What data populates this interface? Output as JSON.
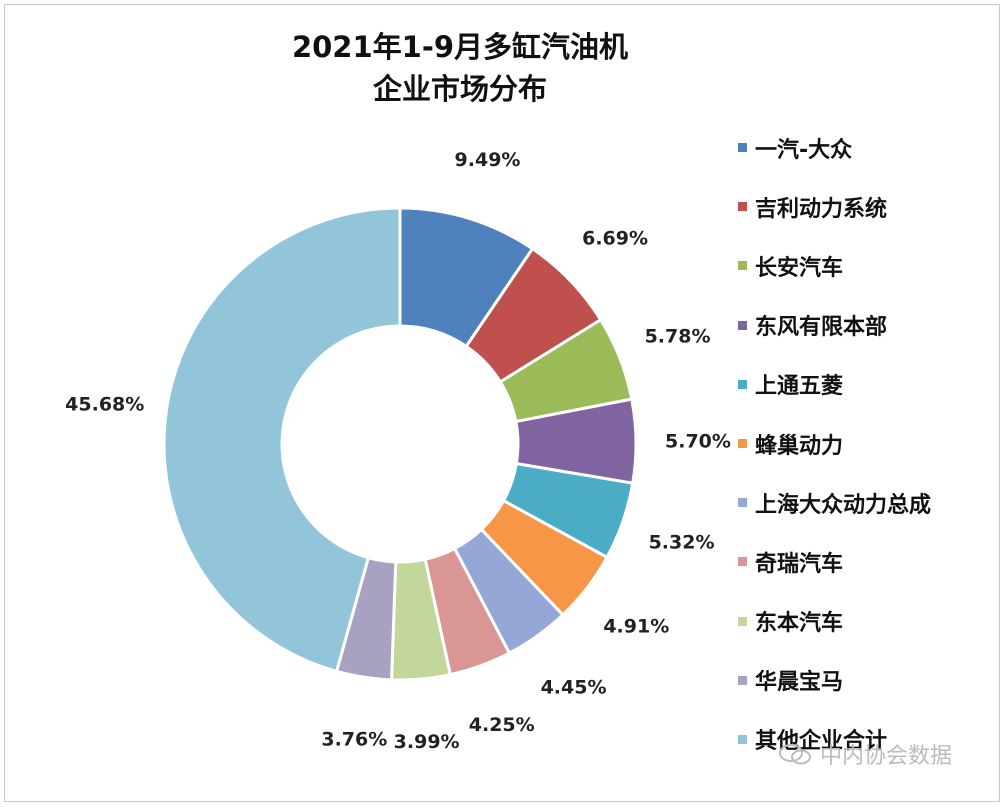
{
  "chart_data": {
    "type": "pie",
    "variant": "donut",
    "title": "2021年1-9月多缸汽油机\n企业市场分布",
    "title_lines": [
      "2021年1-9月多缸汽油机",
      "企业市场分布"
    ],
    "legend_position": "right",
    "categories": [
      "一汽-大众",
      "吉利动力系统",
      "长安汽车",
      "东风有限本部",
      "上通五菱",
      "蜂巢动力",
      "上海大众动力总成",
      "奇瑞汽车",
      "东本汽车",
      "华晨宝马",
      "其他企业合计"
    ],
    "values": [
      9.49,
      6.69,
      5.78,
      5.7,
      5.32,
      4.91,
      4.45,
      4.25,
      3.99,
      3.76,
      45.68
    ],
    "data_labels": [
      "9.49%",
      "6.69%",
      "5.78%",
      "5.70%",
      "5.32%",
      "4.91%",
      "4.45%",
      "4.25%",
      "3.99%",
      "3.76%",
      "45.68%"
    ],
    "colors": [
      "#4f81bd",
      "#c0504d",
      "#9bbb59",
      "#8064a2",
      "#4bacc6",
      "#f79646",
      "#95a7d6",
      "#d99694",
      "#c4d79b",
      "#a9a1c2",
      "#92c4da"
    ]
  },
  "watermark": "中内协会数据"
}
